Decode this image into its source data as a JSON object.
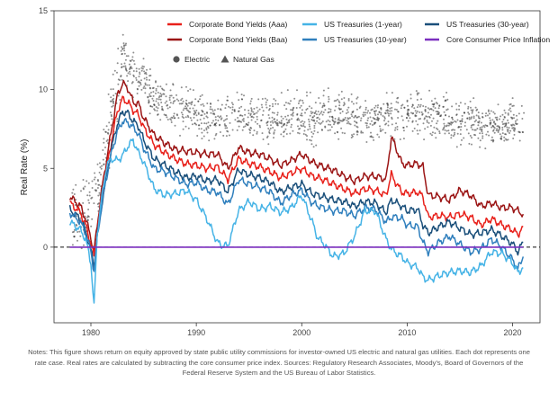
{
  "chart_data": {
    "type": "line",
    "title": "",
    "xlabel": "",
    "ylabel": "Real Rate (%)",
    "xlim": [
      1976.5,
      2022.6
    ],
    "ylim": [
      -4.8,
      15
    ],
    "x_ticks": [
      1980,
      1990,
      2000,
      2010,
      2020
    ],
    "y_ticks": [
      0,
      5,
      10,
      15
    ],
    "grid": false,
    "reference_line": {
      "y": 0,
      "style": "dashed",
      "color": "#111111"
    },
    "legend": {
      "placement": "top-right",
      "entries": [
        {
          "label": "Corporate Bond Yields (Aaa)",
          "color": "#e8201a",
          "kind": "line"
        },
        {
          "label": "US Treasuries (1-year)",
          "color": "#45b3e6",
          "kind": "line"
        },
        {
          "label": "US Treasuries (30-year)",
          "color": "#1a4f7a",
          "kind": "line"
        },
        {
          "label": "Corporate Bond Yields (Baa)",
          "color": "#9b1515",
          "kind": "line"
        },
        {
          "label": "US Treasuries (10-year)",
          "color": "#2f7fbd",
          "kind": "line"
        },
        {
          "label": "Core Consumer Price Inflation",
          "color": "#7b2fbf",
          "kind": "line"
        },
        {
          "label": "Electric",
          "color": "#555555",
          "kind": "circle"
        },
        {
          "label": "Natural Gas",
          "color": "#555555",
          "kind": "triangle"
        }
      ]
    },
    "series": [
      {
        "name": "Corporate Bond Yields (Baa)",
        "color": "#9b1515",
        "x": [
          1978,
          1979,
          1979.5,
          1980,
          1980.3,
          1980.6,
          1981,
          1981.5,
          1982,
          1982.5,
          1983,
          1983.5,
          1984,
          1984.5,
          1985,
          1986,
          1987,
          1988,
          1989,
          1990,
          1991,
          1992,
          1993,
          1994,
          1995,
          1996,
          1997,
          1998,
          1999,
          2000,
          2001,
          2002,
          2003,
          2004,
          2005,
          2006,
          2007,
          2008,
          2008.5,
          2009,
          2009.5,
          2010,
          2011,
          2011.5,
          2012,
          2013,
          2014,
          2015,
          2016,
          2017,
          2018,
          2019,
          2020,
          2020.5,
          2021
        ],
        "values": [
          3.2,
          2.6,
          1.8,
          0.6,
          -0.3,
          1.4,
          3.5,
          5.6,
          7.6,
          9.6,
          10.4,
          10.1,
          9.2,
          9.1,
          8.2,
          7.1,
          6.6,
          6.2,
          6.1,
          6.0,
          5.9,
          5.9,
          5.0,
          6.3,
          6.0,
          5.9,
          5.6,
          5.2,
          5.5,
          5.9,
          5.4,
          5.1,
          4.9,
          4.5,
          4.2,
          4.5,
          4.5,
          4.3,
          7.0,
          6.2,
          5.3,
          5.2,
          5.3,
          5.1,
          3.3,
          3.2,
          3.0,
          3.6,
          3.3,
          2.6,
          2.8,
          2.5,
          2.5,
          2.3,
          2.1
        ]
      },
      {
        "name": "Corporate Bond Yields (Aaa)",
        "color": "#e8201a",
        "x": [
          1978,
          1979,
          1979.5,
          1980,
          1980.3,
          1980.6,
          1981,
          1981.5,
          1982,
          1982.5,
          1983,
          1983.5,
          1984,
          1984.5,
          1985,
          1986,
          1987,
          1988,
          1989,
          1990,
          1991,
          1992,
          1993,
          1994,
          1995,
          1996,
          1997,
          1998,
          1999,
          2000,
          2001,
          2002,
          2003,
          2004,
          2005,
          2006,
          2007,
          2008,
          2008.5,
          2009,
          2009.5,
          2010,
          2011,
          2011.5,
          2012,
          2013,
          2014,
          2015,
          2016,
          2017,
          2018,
          2019,
          2020,
          2020.5,
          2021
        ],
        "values": [
          2.8,
          2.2,
          1.4,
          0.2,
          -0.6,
          1.0,
          3.0,
          5.0,
          6.9,
          8.6,
          9.4,
          9.2,
          8.7,
          8.4,
          7.6,
          6.5,
          6.0,
          5.6,
          5.3,
          5.2,
          5.0,
          5.1,
          4.3,
          5.6,
          5.3,
          5.1,
          4.8,
          4.4,
          4.7,
          5.0,
          4.5,
          4.3,
          4.0,
          3.7,
          3.4,
          3.7,
          3.6,
          3.3,
          4.6,
          4.0,
          3.5,
          3.4,
          3.5,
          3.2,
          1.9,
          2.0,
          1.9,
          2.1,
          1.9,
          1.4,
          1.8,
          1.4,
          1.1,
          0.8,
          1.3
        ]
      },
      {
        "name": "US Treasuries (30-year)",
        "color": "#1a4f7a",
        "x": [
          1978,
          1979,
          1979.5,
          1980,
          1980.3,
          1980.6,
          1981,
          1981.5,
          1982,
          1982.5,
          1983,
          1983.5,
          1984,
          1984.5,
          1985,
          1986,
          1987,
          1988,
          1989,
          1990,
          1991,
          1992,
          1993,
          1994,
          1995,
          1996,
          1997,
          1998,
          1999,
          2000,
          2001,
          2002,
          2003,
          2004,
          2005,
          2006,
          2007,
          2008,
          2008.5,
          2009,
          2009.5,
          2010,
          2011,
          2011.5,
          2012,
          2013,
          2014,
          2015,
          2016,
          2017,
          2018,
          2019,
          2020,
          2020.5,
          2021
        ],
        "values": [
          2.4,
          1.8,
          1.0,
          -0.2,
          -1.2,
          0.7,
          2.6,
          4.6,
          6.4,
          7.8,
          8.6,
          8.5,
          8.0,
          7.7,
          6.8,
          5.6,
          5.2,
          4.8,
          4.4,
          4.5,
          4.2,
          4.3,
          3.5,
          4.9,
          4.6,
          4.4,
          4.1,
          3.5,
          3.8,
          4.0,
          3.4,
          3.2,
          3.0,
          2.9,
          2.6,
          2.9,
          2.8,
          2.2,
          3.0,
          2.8,
          2.6,
          2.3,
          2.4,
          1.4,
          0.9,
          1.3,
          1.6,
          1.2,
          0.8,
          0.9,
          1.1,
          0.7,
          0.2,
          -0.3,
          0.3
        ]
      },
      {
        "name": "US Treasuries (10-year)",
        "color": "#2f7fbd",
        "x": [
          1978,
          1979,
          1979.5,
          1980,
          1980.3,
          1980.6,
          1981,
          1981.5,
          1982,
          1982.5,
          1983,
          1983.5,
          1984,
          1984.5,
          1985,
          1986,
          1987,
          1988,
          1989,
          1990,
          1991,
          1992,
          1993,
          1994,
          1995,
          1996,
          1997,
          1998,
          1999,
          2000,
          2001,
          2002,
          2003,
          2004,
          2005,
          2006,
          2007,
          2008,
          2008.5,
          2009,
          2009.5,
          2010,
          2011,
          2011.5,
          2012,
          2013,
          2014,
          2015,
          2016,
          2017,
          2018,
          2019,
          2020,
          2020.5,
          2021
        ],
        "values": [
          2.2,
          1.6,
          0.9,
          -0.3,
          -1.5,
          0.6,
          2.5,
          4.5,
          6.1,
          7.3,
          8.0,
          7.9,
          7.6,
          7.2,
          6.3,
          5.0,
          4.8,
          4.4,
          4.0,
          4.1,
          3.6,
          3.5,
          2.7,
          4.3,
          4.0,
          3.8,
          3.5,
          2.8,
          3.3,
          3.6,
          2.8,
          2.5,
          2.3,
          2.3,
          2.0,
          2.5,
          2.4,
          1.6,
          1.9,
          1.9,
          1.8,
          1.4,
          1.3,
          0.3,
          -0.3,
          0.3,
          0.7,
          0.2,
          -0.3,
          -0.1,
          0.5,
          0.0,
          -0.8,
          -1.4,
          -0.6
        ]
      },
      {
        "name": "US Treasuries (1-year)",
        "color": "#45b3e6",
        "x": [
          1978,
          1979,
          1979.5,
          1980,
          1980.3,
          1980.6,
          1981,
          1981.5,
          1982,
          1982.5,
          1983,
          1983.5,
          1984,
          1984.5,
          1985,
          1986,
          1987,
          1988,
          1989,
          1990,
          1991,
          1992,
          1992.5,
          1993,
          1994,
          1995,
          1996,
          1997,
          1998,
          1999,
          2000,
          2001,
          2001.5,
          2002,
          2003,
          2004,
          2005,
          2006,
          2007,
          2008,
          2008.5,
          2009,
          2009.5,
          2010,
          2011,
          2011.5,
          2012,
          2013,
          2014,
          2015,
          2016,
          2017,
          2018,
          2019,
          2020,
          2020.5,
          2021
        ],
        "values": [
          1.6,
          1.1,
          0.5,
          -1.0,
          -3.8,
          0.9,
          3.0,
          5.2,
          5.6,
          5.5,
          5.8,
          6.4,
          6.8,
          6.0,
          5.4,
          3.7,
          3.3,
          3.4,
          3.6,
          3.0,
          1.8,
          0.3,
          0.1,
          0.1,
          2.3,
          2.9,
          2.4,
          2.6,
          2.2,
          2.5,
          3.3,
          1.6,
          0.6,
          0.3,
          -0.6,
          -0.4,
          0.7,
          2.3,
          2.3,
          0.5,
          -0.1,
          -0.4,
          -0.6,
          -1.0,
          -1.3,
          -1.9,
          -2.1,
          -1.8,
          -1.6,
          -1.5,
          -1.6,
          -1.2,
          -0.3,
          -0.4,
          -1.0,
          -1.6,
          -1.3
        ]
      },
      {
        "name": "Core Consumer Price Inflation",
        "color": "#7b2fbf",
        "x": [
          1978,
          2021
        ],
        "values": [
          0,
          0
        ]
      }
    ],
    "scatter": {
      "name": "Electric",
      "color": "#333333",
      "trend_x": [
        1978,
        1979,
        1980,
        1981,
        1982,
        1983,
        1984,
        1985,
        1986,
        1987,
        1988,
        1989,
        1990,
        1991,
        1992,
        1993,
        1994,
        1995,
        1996,
        1997,
        1998,
        1999,
        2000,
        2001,
        2002,
        2003,
        2004,
        2005,
        2006,
        2007,
        2008,
        2009,
        2010,
        2011,
        2012,
        2013,
        2014,
        2015,
        2016,
        2017,
        2018,
        2019,
        2020,
        2021
      ],
      "trend_y": [
        2.0,
        2.2,
        2.5,
        4.5,
        8.5,
        12.2,
        11.0,
        10.5,
        9.6,
        9.0,
        8.8,
        8.6,
        8.4,
        8.2,
        8.2,
        8.0,
        8.4,
        8.2,
        8.2,
        8.0,
        8.0,
        8.5,
        8.2,
        8.0,
        8.6,
        8.4,
        8.3,
        8.0,
        8.0,
        8.2,
        8.4,
        8.2,
        8.4,
        8.6,
        8.4,
        8.3,
        8.2,
        8.1,
        8.0,
        7.8,
        7.8,
        7.6,
        7.8,
        8.0
      ]
    }
  },
  "notes": "Notes: This figure shows return on equity approved by state public utility commissions for investor-owned US electric and natural gas utilities. Each dot represents one rate case. Real rates are calculated by subtracting the core consumer price index. Sources: Regulatory Research Associates, Moody’s, Board of Governors of the Federal Reserve System and the US Bureau of Labor Statistics."
}
